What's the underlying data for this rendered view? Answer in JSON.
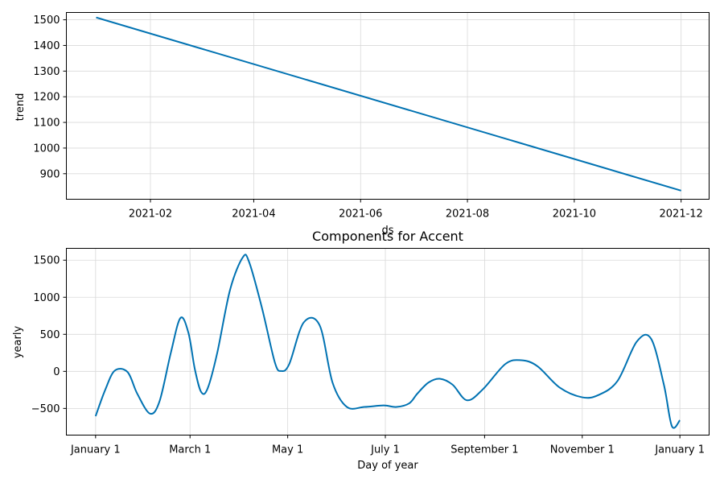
{
  "chart_data": [
    {
      "type": "line",
      "title": "",
      "xlabel": "ds",
      "ylabel": "trend",
      "grid": true,
      "line_color": "#0072B2",
      "x_ticks": [
        "2021-02",
        "2021-04",
        "2021-06",
        "2021-08",
        "2021-10",
        "2021-12"
      ],
      "y_ticks": [
        "900",
        "1000",
        "1100",
        "1200",
        "1300",
        "1400",
        "1500"
      ],
      "series": [
        {
          "x": [
            "2021-01-01",
            "2021-12-01"
          ],
          "y": [
            1509,
            834
          ]
        }
      ]
    },
    {
      "type": "line",
      "title": "Components for Accent",
      "xlabel": "Day of year",
      "ylabel": "yearly",
      "grid": true,
      "line_color": "#0072B2",
      "x_ticks": [
        "January 1",
        "March 1",
        "May 1",
        "July 1",
        "September 1",
        "November 1",
        "January 1"
      ],
      "y_ticks": [
        "−500",
        "0",
        "500",
        "1000",
        "1500"
      ],
      "series": [
        {
          "x": [
            0,
            6,
            12,
            20,
            26,
            34,
            40,
            47,
            53,
            58,
            62,
            66,
            70,
            76,
            84,
            92,
            96,
            104,
            112,
            116,
            121,
            130,
            140,
            148,
            157,
            168,
            180,
            188,
            196,
            201,
            208,
            215,
            223,
            232,
            242,
            256,
            266,
            276,
            290,
            304,
            314,
            326,
            338,
            347,
            355,
            360,
            365
          ],
          "y": [
            -605,
            -250,
            10,
            -10,
            -300,
            -570,
            -400,
            250,
            720,
            520,
            30,
            -280,
            -230,
            250,
            1100,
            1540,
            1470,
            850,
            120,
            5,
            100,
            660,
            620,
            -150,
            -480,
            -480,
            -460,
            -480,
            -430,
            -300,
            -150,
            -100,
            -180,
            -390,
            -240,
            100,
            150,
            70,
            -220,
            -350,
            -320,
            -130,
            400,
            440,
            -180,
            -740,
            -660
          ]
        }
      ]
    }
  ]
}
